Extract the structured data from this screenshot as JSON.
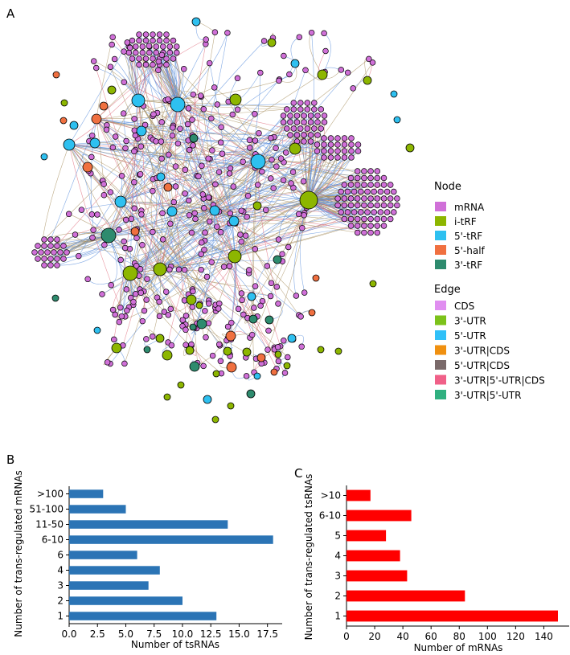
{
  "panels": {
    "A": {
      "letter": "A",
      "legend": {
        "node_title": "Node",
        "nodes": [
          {
            "label": "mRNA",
            "color": "#d070d8"
          },
          {
            "label": "i-tRF",
            "color": "#8db600"
          },
          {
            "label": "5'-tRF",
            "color": "#2ec0f0"
          },
          {
            "label": "5'-half",
            "color": "#f07040"
          },
          {
            "label": "3'-tRF",
            "color": "#2e8b6e"
          }
        ],
        "edge_title": "Edge",
        "edges": [
          {
            "label": "CDS",
            "color": "#e08ef0"
          },
          {
            "label": "3'-UTR",
            "color": "#7cc21a"
          },
          {
            "label": "5'-UTR",
            "color": "#30c0f8"
          },
          {
            "label": "3'-UTR|CDS",
            "color": "#f09010"
          },
          {
            "label": "5'-UTR|CDS",
            "color": "#7a6a6a"
          },
          {
            "label": "3'-UTR|5'-UTR|CDS",
            "color": "#f06088"
          },
          {
            "label": "3'-UTR|5'-UTR",
            "color": "#30b080"
          }
        ],
        "edge_line_colors": [
          "#5b8fdc",
          "#a89060",
          "#e07080",
          "#7a7a7a"
        ]
      }
    }
  },
  "chart_data": [
    {
      "panel": "B",
      "type": "bar",
      "orientation": "horizontal",
      "title": "",
      "categories": [
        ">100",
        "51-100",
        "11-50",
        "6-10",
        "6",
        "4",
        "3",
        "2",
        "1"
      ],
      "values": [
        3,
        5,
        14,
        18,
        6,
        8,
        7,
        10,
        13
      ],
      "xlabel": "Number of tsRNAs",
      "ylabel": "Number of trans-regulated mRNAs",
      "xlim": [
        0,
        18.8
      ],
      "xticks": [
        "0.0",
        "2.5",
        "5.0",
        "7.5",
        "10.0",
        "12.5",
        "15.0",
        "17.5"
      ],
      "xtick_values": [
        0,
        2.5,
        5,
        7.5,
        10,
        12.5,
        15,
        17.5
      ],
      "color": "#2b74b5",
      "grid": false
    },
    {
      "panel": "C",
      "type": "bar",
      "orientation": "horizontal",
      "title": "",
      "categories": [
        ">10",
        "6-10",
        "5",
        "4",
        "3",
        "2",
        "1"
      ],
      "values": [
        17,
        46,
        28,
        38,
        43,
        84,
        150
      ],
      "xlabel": "Number of mRNAs",
      "ylabel": "Number of trans-regulated tsRNAs",
      "xlim": [
        0,
        158
      ],
      "xticks": [
        "0",
        "20",
        "40",
        "60",
        "80",
        "100",
        "120",
        "140"
      ],
      "xtick_values": [
        0,
        20,
        40,
        60,
        80,
        100,
        120,
        140
      ],
      "color": "#ff0000",
      "grid": false
    }
  ]
}
